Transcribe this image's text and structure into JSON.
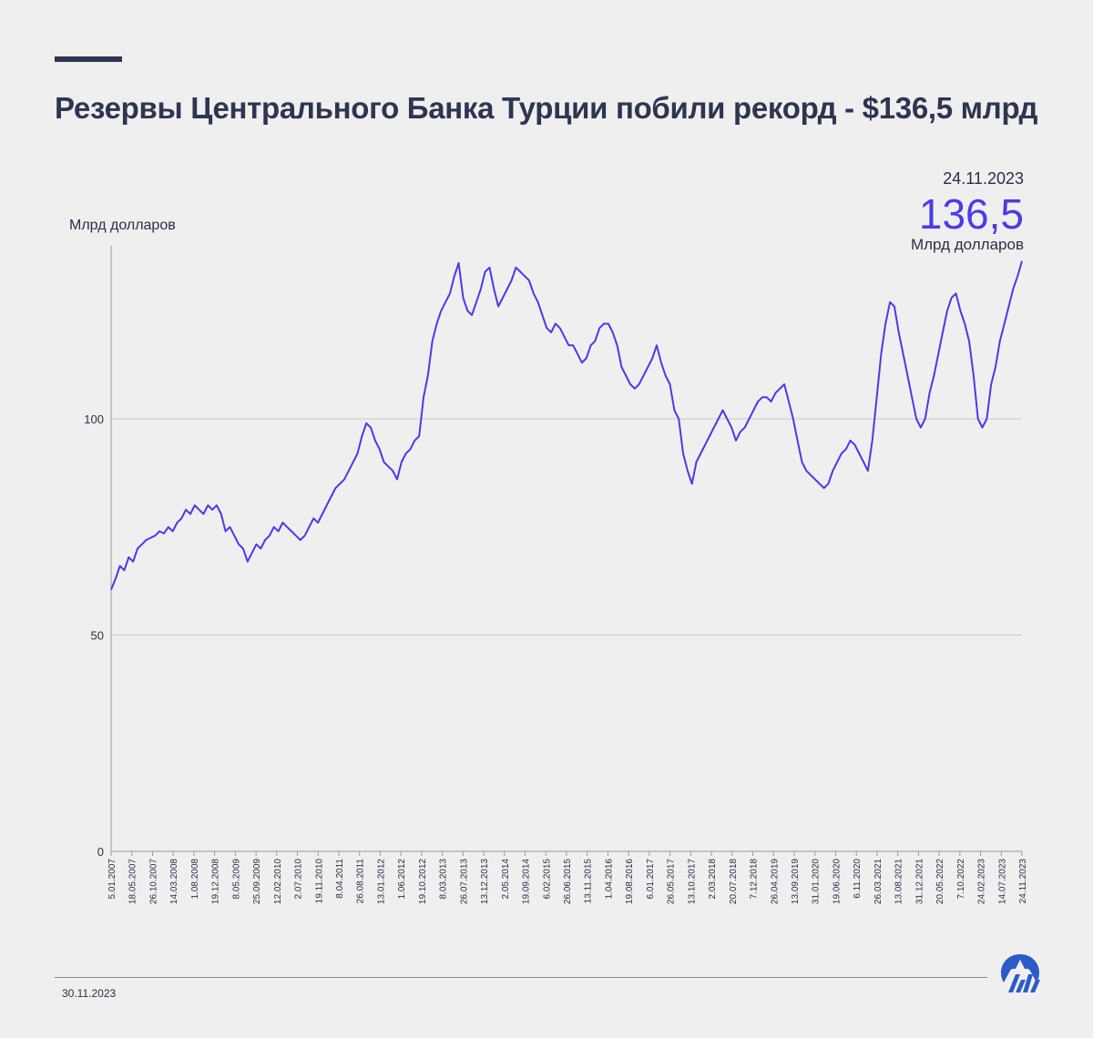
{
  "header": {
    "title": "Резервы Центрального Банка Турции побили рекорд - $136,5 млрд"
  },
  "callout": {
    "date": "24.11.2023",
    "value": "136,5",
    "unit": "Млрд долларов"
  },
  "footer": {
    "date": "30.11.2023",
    "logo_icon": "aa-logo-icon"
  },
  "colors": {
    "line": "#4a3be6",
    "text": "#2b2f45",
    "grid": "#c9c9c9",
    "background": "#efefef"
  },
  "chart_data": {
    "type": "line",
    "title": "Резервы Центрального Банка Турции побили рекорд - $136,5 млрд",
    "ylabel": "Млрд долларов",
    "xlabel": "",
    "ylim": [
      0,
      140
    ],
    "yticks": [
      0,
      50,
      100
    ],
    "grid": true,
    "xtick_labels": [
      "5.01.2007",
      "18.05.2007",
      "26.10.2007",
      "14.03.2008",
      "1.08.2008",
      "19.12.2008",
      "8.05.2009",
      "25.09.2009",
      "12.02.2010",
      "2.07.2010",
      "19.11.2010",
      "8.04.2011",
      "26.08.2011",
      "13.01.2012",
      "1.06.2012",
      "19.10.2012",
      "8.03.2013",
      "26.07.2013",
      "13.12.2013",
      "2.05.2014",
      "19.09.2014",
      "6.02.2015",
      "26.06.2015",
      "13.11.2015",
      "1.04.2016",
      "19.08.2016",
      "6.01.2017",
      "26.05.2017",
      "13.10.2017",
      "2.03.2018",
      "20.07.2018",
      "7.12.2018",
      "26.04.2019",
      "13.09.2019",
      "31.01.2020",
      "19.06.2020",
      "6.11.2020",
      "26.03.2021",
      "13.08.2021",
      "31.12.2021",
      "20.05.2022",
      "7.10.2022",
      "24.02.2023",
      "14.07.2023",
      "24.11.2023"
    ],
    "series": [
      {
        "values": [
          60.5,
          63,
          66,
          65,
          68,
          67,
          70,
          71,
          72,
          72.5,
          73,
          74,
          73.5,
          75,
          74,
          76,
          77,
          79,
          78,
          80,
          79,
          78,
          80,
          79,
          80,
          78,
          74,
          75,
          73,
          71,
          70,
          67,
          69,
          71,
          70,
          72,
          73,
          75,
          74,
          76,
          75,
          74,
          73,
          72,
          73,
          75,
          77,
          76,
          78,
          80,
          82,
          84,
          85,
          86,
          88,
          90,
          92,
          96,
          99,
          98,
          95,
          93,
          90,
          89,
          88,
          86,
          90,
          92,
          93,
          95,
          96,
          105,
          110,
          118,
          122,
          125,
          127,
          129,
          133,
          136,
          128,
          125,
          124,
          127,
          130,
          134,
          135,
          130,
          126,
          128,
          130,
          132,
          135,
          134,
          133,
          132,
          129,
          127,
          124,
          121,
          120,
          122,
          121,
          119,
          117,
          117,
          115,
          113,
          114,
          117,
          118,
          121,
          122,
          122,
          120,
          117,
          112,
          110,
          108,
          107,
          108,
          110,
          112,
          114,
          117,
          113,
          110,
          108,
          102,
          100,
          92,
          88,
          85,
          90,
          92,
          94,
          96,
          98,
          100,
          102,
          100,
          98,
          95,
          97,
          98,
          100,
          102,
          104,
          105,
          105,
          104,
          106,
          107,
          108,
          104,
          100,
          95,
          90,
          88,
          87,
          86,
          85,
          84,
          85,
          88,
          90,
          92,
          93,
          95,
          94,
          92,
          90,
          88,
          95,
          105,
          115,
          122,
          127,
          126,
          120,
          115,
          110,
          105,
          100,
          98,
          100,
          106,
          110,
          115,
          120,
          125,
          128,
          129,
          125,
          122,
          118,
          110,
          100,
          98,
          100,
          108,
          112,
          118,
          122,
          126,
          130,
          133,
          136.5
        ]
      }
    ]
  }
}
